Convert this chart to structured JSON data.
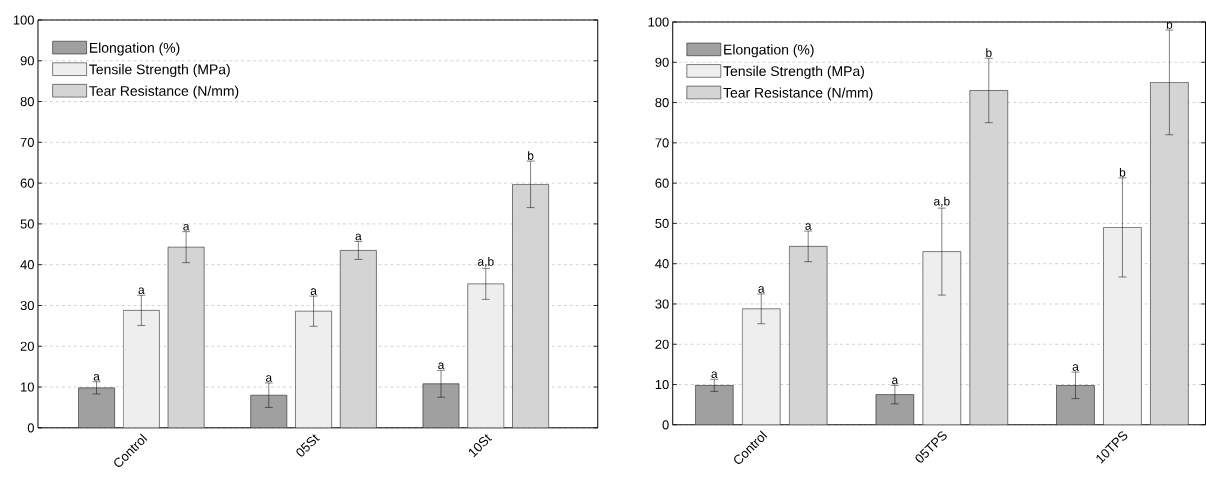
{
  "chart_data": [
    {
      "type": "bar",
      "categories": [
        "Control",
        "05St",
        "10St"
      ],
      "series": [
        {
          "name": "Elongation (%)",
          "color": "#a0a0a0",
          "values": [
            9.8,
            8.0,
            10.8
          ],
          "errors": [
            1.5,
            3.0,
            3.3
          ]
        },
        {
          "name": "Tensile Strength (MPa)",
          "color": "#eeeeee",
          "values": [
            28.8,
            28.6,
            35.3
          ],
          "errors": [
            3.7,
            3.7,
            3.8
          ]
        },
        {
          "name": "Tear Resistance (N/mm)",
          "color": "#d4d4d4",
          "values": [
            44.3,
            43.5,
            59.7
          ],
          "errors": [
            3.8,
            2.2,
            5.7
          ]
        }
      ],
      "ylim": [
        0,
        100
      ],
      "yticks": [
        0,
        10,
        20,
        30,
        40,
        50,
        60,
        70,
        80,
        90,
        100
      ],
      "grid": "y",
      "legend": "top left",
      "annotations": [
        "a",
        "a",
        "a",
        "a",
        "a",
        "a",
        "a",
        "a,b",
        "b"
      ]
    },
    {
      "type": "bar",
      "categories": [
        "Control",
        "05TPS",
        "10TPS"
      ],
      "series": [
        {
          "name": "Elongation (%)",
          "color": "#a0a0a0",
          "values": [
            9.8,
            7.5,
            9.8
          ],
          "errors": [
            1.5,
            2.3,
            3.3
          ]
        },
        {
          "name": "Tensile Strength (MPa)",
          "color": "#eeeeee",
          "values": [
            28.8,
            43.0,
            49.0
          ],
          "errors": [
            3.7,
            10.8,
            12.3
          ]
        },
        {
          "name": "Tear Resistance (N/mm)",
          "color": "#d4d4d4",
          "values": [
            44.3,
            83.0,
            85.0
          ],
          "errors": [
            3.8,
            8.0,
            13.0
          ]
        }
      ],
      "ylim": [
        0,
        100
      ],
      "yticks": [
        0,
        10,
        20,
        30,
        40,
        50,
        60,
        70,
        80,
        90,
        100
      ],
      "grid": "y",
      "legend": "top left",
      "annotations": [
        "a",
        "a",
        "a",
        "a",
        "a,b",
        "b",
        "a",
        "b",
        "b"
      ]
    }
  ]
}
